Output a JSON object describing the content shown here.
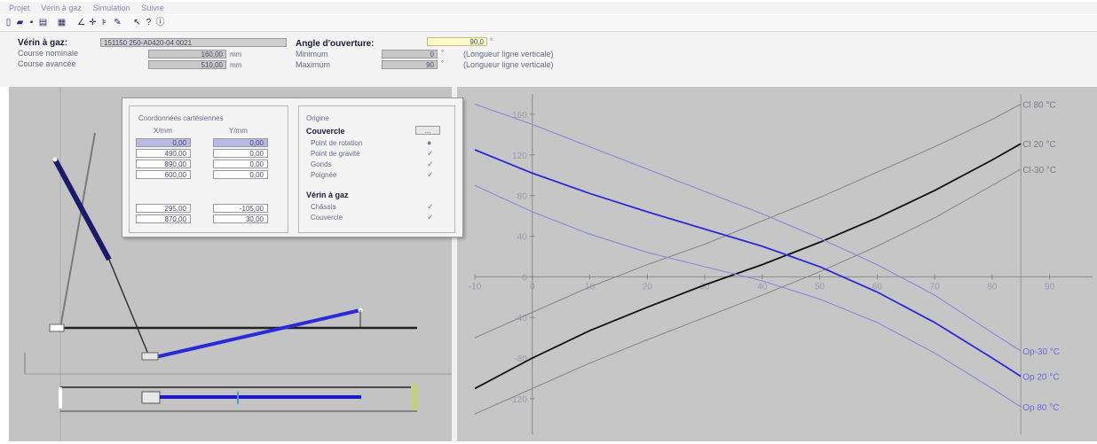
{
  "menu": [
    "Projet",
    "Vérin à gaz",
    "Simulation",
    "Suivre"
  ],
  "toolbar_icons": [
    "new-icon",
    "open-icon",
    "save-icon",
    "print-icon",
    "calc-icon",
    "angle-icon",
    "move-icon",
    "hinge-icon",
    "draw-icon",
    "cursor-icon",
    "help-icon",
    "about-icon"
  ],
  "props": {
    "cylinder_label": "Vérin à gaz:",
    "cylinder_value": "151150 250-A0420-04 0021",
    "stroke_label": "Course nominale",
    "stroke_value": "160,00",
    "stroke_unit": "mm",
    "length_label": "Course avancée",
    "length_value": "510,00",
    "length_unit": "mm",
    "angle_label": "Angle d'ouverture:",
    "angle_value": "90,0",
    "angle_unit": "°",
    "min_label": "Minimum",
    "min_value": "0",
    "min_unit": "°",
    "min_note": "(Longueur ligne verticale)",
    "max_label": "Maximum",
    "max_value": "90",
    "max_unit": "°",
    "max_note": "(Longueur ligne verticale)"
  },
  "dialog": {
    "coords_title": "Coordonnées cartésiennes",
    "col_x": "X/mm",
    "col_y": "Y/mm",
    "rows": [
      {
        "x": "0,00",
        "y": "0,00"
      },
      {
        "x": "490,00",
        "y": "0,00"
      },
      {
        "x": "890,00",
        "y": "0,00"
      },
      {
        "x": "600,00",
        "y": "0,00"
      }
    ],
    "rows2": [
      {
        "x": "295,00",
        "y": "-105,00"
      },
      {
        "x": "870,00",
        "y": "30,00"
      }
    ],
    "origin_title": "Origine",
    "section1": "Couvercle",
    "section1_btn": "...",
    "opts1": [
      {
        "label": "Point de rotation",
        "mark": "●"
      },
      {
        "label": "Point de gravité",
        "mark": "✓"
      },
      {
        "label": "Gonds",
        "mark": "✓"
      },
      {
        "label": "Poignée",
        "mark": "✓"
      }
    ],
    "section2": "Vérin à gaz",
    "opts2": [
      {
        "label": "Châssis",
        "mark": "✓"
      },
      {
        "label": "Couvercle",
        "mark": "✓"
      }
    ]
  },
  "chart_data": {
    "type": "line",
    "x_ticks": [
      "-10",
      "0",
      "10",
      "20",
      "30",
      "40",
      "50",
      "60",
      "70",
      "80",
      "90"
    ],
    "y_ticks": [
      "160",
      "120",
      "80",
      "40",
      "0",
      "-40",
      "-80",
      "-120"
    ],
    "xlim": [
      -10,
      95
    ],
    "ylim": [
      -155,
      180
    ],
    "series": [
      {
        "name": "Cl 80 °C",
        "color": "#8a8a8a",
        "x": [
          -10,
          0,
          10,
          20,
          30,
          40,
          50,
          60,
          70,
          80,
          85
        ],
        "y": [
          -60,
          -35,
          -10,
          12,
          32,
          55,
          78,
          103,
          128,
          155,
          170
        ]
      },
      {
        "name": "Cl 20 °C",
        "color": "#111111",
        "x": [
          -10,
          0,
          10,
          20,
          30,
          40,
          50,
          60,
          70,
          80,
          85
        ],
        "y": [
          -110,
          -80,
          -53,
          -30,
          -8,
          12,
          34,
          58,
          85,
          115,
          131
        ]
      },
      {
        "name": "Cl-30 °C",
        "color": "#8a8a8a",
        "x": [
          -10,
          0,
          10,
          20,
          30,
          40,
          50,
          60,
          70,
          80,
          85
        ],
        "y": [
          -135,
          -110,
          -85,
          -62,
          -40,
          -18,
          5,
          30,
          58,
          90,
          106
        ]
      },
      {
        "name": "Op-30 °C",
        "color": "#8888d8",
        "x": [
          -10,
          0,
          10,
          20,
          30,
          40,
          50,
          60,
          70,
          80,
          85
        ],
        "y": [
          170,
          150,
          128,
          106,
          84,
          62,
          38,
          12,
          -18,
          -55,
          -73
        ]
      },
      {
        "name": "Op 20 °C",
        "color": "#2a2ad8",
        "x": [
          -10,
          0,
          10,
          20,
          30,
          40,
          50,
          60,
          70,
          80,
          85
        ],
        "y": [
          125,
          102,
          82,
          64,
          47,
          30,
          10,
          -15,
          -45,
          -80,
          -98
        ]
      },
      {
        "name": "Op 80 °C",
        "color": "#8888d8",
        "x": [
          -10,
          0,
          10,
          20,
          30,
          40,
          50,
          60,
          70,
          80,
          85
        ],
        "y": [
          90,
          64,
          42,
          24,
          10,
          -4,
          -22,
          -45,
          -75,
          -110,
          -128
        ]
      }
    ]
  },
  "colors": {
    "accent": "#2a2ad8",
    "bar_dark": "#1a1a6a"
  }
}
